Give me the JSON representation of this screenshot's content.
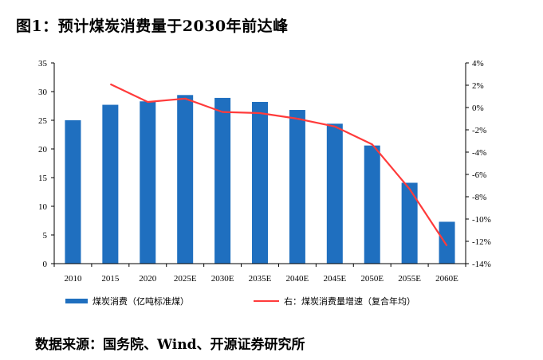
{
  "header": {
    "title": "图1：预计煤炭消费量于2030年前达峰"
  },
  "footer": {
    "source": "数据来源：国务院、Wind、开源证券研究所"
  },
  "chart_data": {
    "type": "bar",
    "categories": [
      "2010",
      "2015",
      "2020",
      "2025E",
      "2030E",
      "2035E",
      "2040E",
      "2045E",
      "2050E",
      "2055E",
      "2060E"
    ],
    "series": [
      {
        "name": "煤炭消费（亿吨标准煤）",
        "type": "bar",
        "axis": "left",
        "color": "#1f6fbf",
        "values": [
          25.0,
          27.7,
          28.3,
          29.4,
          28.9,
          28.2,
          26.8,
          24.4,
          20.6,
          14.1,
          7.3
        ]
      },
      {
        "name": "右：煤炭消费量增速（复合年均）",
        "type": "line",
        "axis": "right",
        "color": "#ff3b3b",
        "values": [
          null,
          2.1,
          0.5,
          0.8,
          -0.4,
          -0.5,
          -1.0,
          -1.7,
          -3.3,
          -7.3,
          -12.4
        ]
      }
    ],
    "ylim_left": [
      0,
      35
    ],
    "yticks_left": [
      "0",
      "5",
      "10",
      "15",
      "20",
      "25",
      "30",
      "35"
    ],
    "ylim_right": [
      -14,
      4
    ],
    "yticks_right": [
      "-14%",
      "-12%",
      "-10%",
      "-8%",
      "-6%",
      "-4%",
      "-2%",
      "0%",
      "2%",
      "4%"
    ],
    "grid": false,
    "legend_position": "bottom"
  }
}
